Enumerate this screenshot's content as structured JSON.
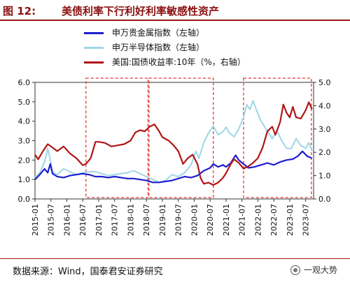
{
  "figure": {
    "label": "图 12:",
    "title": "美债利率下行利好利率敏感性资产"
  },
  "source_note": "数据来源：Wind，国泰君安证券研究",
  "watermark": "一观大势",
  "colors": {
    "title": "#8b1010",
    "s1": "#1f1fd0",
    "s2": "#9fd6e6",
    "s3": "#b01515",
    "highlight": "#e53935"
  },
  "chart_data": {
    "type": "line",
    "y_left": {
      "min": 0.0,
      "max": 6.0,
      "ticks": [
        "0.0",
        "1.0",
        "2.0",
        "3.0",
        "4.0",
        "5.0",
        "6.0"
      ]
    },
    "y_right": {
      "min": 0.0,
      "max": 5.0,
      "ticks": [
        "0.0",
        "1.0",
        "2.0",
        "3.0",
        "4.0",
        "5.0"
      ]
    },
    "x_range": [
      2015.0,
      2023.75
    ],
    "x_ticks": [
      "2015-01",
      "2015-07",
      "2016-01",
      "2016-07",
      "2017-01",
      "2017-07",
      "2018-01",
      "2018-07",
      "2019-01",
      "2019-07",
      "2020-01",
      "2020-07",
      "2021-01",
      "2021-07",
      "2022-01",
      "2022-07",
      "2023-01",
      "2023-07"
    ],
    "series": [
      {
        "name": "申万贵金属指数（左轴）",
        "axis": "left",
        "color": "#1f1fd0",
        "points": [
          [
            2015.0,
            1.0
          ],
          [
            2015.15,
            1.25
          ],
          [
            2015.3,
            1.55
          ],
          [
            2015.4,
            1.35
          ],
          [
            2015.48,
            1.8
          ],
          [
            2015.55,
            1.3
          ],
          [
            2015.7,
            1.15
          ],
          [
            2015.9,
            1.1
          ],
          [
            2016.1,
            1.2
          ],
          [
            2016.3,
            1.25
          ],
          [
            2016.5,
            1.3
          ],
          [
            2016.7,
            1.25
          ],
          [
            2016.9,
            1.15
          ],
          [
            2017.1,
            1.15
          ],
          [
            2017.3,
            1.1
          ],
          [
            2017.5,
            1.15
          ],
          [
            2017.7,
            1.1
          ],
          [
            2017.9,
            1.05
          ],
          [
            2018.1,
            1.05
          ],
          [
            2018.3,
            1.0
          ],
          [
            2018.5,
            0.95
          ],
          [
            2018.7,
            0.85
          ],
          [
            2018.9,
            0.85
          ],
          [
            2019.1,
            0.9
          ],
          [
            2019.3,
            0.95
          ],
          [
            2019.5,
            1.05
          ],
          [
            2019.7,
            1.15
          ],
          [
            2019.9,
            1.1
          ],
          [
            2020.1,
            1.2
          ],
          [
            2020.3,
            1.45
          ],
          [
            2020.5,
            1.6
          ],
          [
            2020.6,
            1.8
          ],
          [
            2020.75,
            1.65
          ],
          [
            2020.9,
            1.75
          ],
          [
            2021.0,
            1.65
          ],
          [
            2021.15,
            1.85
          ],
          [
            2021.3,
            2.25
          ],
          [
            2021.4,
            2.0
          ],
          [
            2021.55,
            1.8
          ],
          [
            2021.7,
            1.6
          ],
          [
            2021.9,
            1.65
          ],
          [
            2022.1,
            1.75
          ],
          [
            2022.3,
            1.85
          ],
          [
            2022.5,
            1.75
          ],
          [
            2022.7,
            1.9
          ],
          [
            2022.9,
            2.0
          ],
          [
            2023.1,
            2.05
          ],
          [
            2023.25,
            2.2
          ],
          [
            2023.4,
            2.45
          ],
          [
            2023.55,
            2.2
          ],
          [
            2023.7,
            2.1
          ]
        ]
      },
      {
        "name": "申万半导体指数（左轴）",
        "axis": "left",
        "color": "#9fd6e6",
        "points": [
          [
            2015.0,
            1.1
          ],
          [
            2015.15,
            1.35
          ],
          [
            2015.3,
            1.9
          ],
          [
            2015.4,
            2.6
          ],
          [
            2015.47,
            2.1
          ],
          [
            2015.55,
            1.4
          ],
          [
            2015.7,
            1.25
          ],
          [
            2015.9,
            1.55
          ],
          [
            2016.1,
            1.4
          ],
          [
            2016.3,
            1.25
          ],
          [
            2016.5,
            1.35
          ],
          [
            2016.7,
            1.4
          ],
          [
            2016.9,
            1.4
          ],
          [
            2017.1,
            1.3
          ],
          [
            2017.3,
            1.2
          ],
          [
            2017.5,
            1.25
          ],
          [
            2017.7,
            1.3
          ],
          [
            2017.9,
            1.35
          ],
          [
            2018.1,
            1.45
          ],
          [
            2018.3,
            1.3
          ],
          [
            2018.5,
            1.15
          ],
          [
            2018.7,
            1.0
          ],
          [
            2018.9,
            0.85
          ],
          [
            2019.1,
            0.95
          ],
          [
            2019.3,
            1.25
          ],
          [
            2019.5,
            1.15
          ],
          [
            2019.7,
            1.35
          ],
          [
            2019.9,
            1.75
          ],
          [
            2020.05,
            2.45
          ],
          [
            2020.15,
            2.1
          ],
          [
            2020.3,
            2.9
          ],
          [
            2020.45,
            3.4
          ],
          [
            2020.6,
            3.75
          ],
          [
            2020.75,
            3.3
          ],
          [
            2020.9,
            3.45
          ],
          [
            2021.0,
            3.7
          ],
          [
            2021.1,
            3.4
          ],
          [
            2021.25,
            3.2
          ],
          [
            2021.4,
            3.6
          ],
          [
            2021.55,
            4.2
          ],
          [
            2021.65,
            4.85
          ],
          [
            2021.75,
            4.6
          ],
          [
            2021.85,
            5.05
          ],
          [
            2021.95,
            4.6
          ],
          [
            2022.1,
            4.0
          ],
          [
            2022.3,
            3.5
          ],
          [
            2022.45,
            3.1
          ],
          [
            2022.6,
            3.5
          ],
          [
            2022.75,
            3.0
          ],
          [
            2022.9,
            2.6
          ],
          [
            2023.05,
            2.6
          ],
          [
            2023.2,
            3.1
          ],
          [
            2023.35,
            2.75
          ],
          [
            2023.5,
            2.6
          ],
          [
            2023.6,
            2.9
          ],
          [
            2023.7,
            2.45
          ]
        ]
      },
      {
        "name": "美国:国债收益率:10年（%，右轴）",
        "axis": "right",
        "color": "#b01515",
        "points": [
          [
            2015.0,
            1.9
          ],
          [
            2015.1,
            1.7
          ],
          [
            2015.25,
            2.05
          ],
          [
            2015.4,
            2.35
          ],
          [
            2015.5,
            2.25
          ],
          [
            2015.7,
            2.05
          ],
          [
            2015.9,
            2.25
          ],
          [
            2016.1,
            1.95
          ],
          [
            2016.3,
            1.75
          ],
          [
            2016.5,
            1.45
          ],
          [
            2016.6,
            1.5
          ],
          [
            2016.75,
            1.75
          ],
          [
            2016.9,
            2.45
          ],
          [
            2017.0,
            2.45
          ],
          [
            2017.2,
            2.4
          ],
          [
            2017.4,
            2.25
          ],
          [
            2017.6,
            2.3
          ],
          [
            2017.8,
            2.35
          ],
          [
            2018.0,
            2.5
          ],
          [
            2018.15,
            2.85
          ],
          [
            2018.3,
            2.95
          ],
          [
            2018.45,
            2.9
          ],
          [
            2018.6,
            3.1
          ],
          [
            2018.75,
            3.2
          ],
          [
            2018.9,
            2.9
          ],
          [
            2019.0,
            2.65
          ],
          [
            2019.2,
            2.5
          ],
          [
            2019.35,
            2.3
          ],
          [
            2019.5,
            2.05
          ],
          [
            2019.65,
            1.5
          ],
          [
            2019.8,
            1.75
          ],
          [
            2019.95,
            1.9
          ],
          [
            2020.1,
            1.5
          ],
          [
            2020.2,
            0.9
          ],
          [
            2020.3,
            0.65
          ],
          [
            2020.45,
            0.7
          ],
          [
            2020.6,
            0.6
          ],
          [
            2020.75,
            0.7
          ],
          [
            2020.9,
            0.9
          ],
          [
            2021.0,
            1.1
          ],
          [
            2021.15,
            1.5
          ],
          [
            2021.25,
            1.7
          ],
          [
            2021.4,
            1.55
          ],
          [
            2021.55,
            1.3
          ],
          [
            2021.7,
            1.4
          ],
          [
            2021.85,
            1.55
          ],
          [
            2022.0,
            1.75
          ],
          [
            2022.15,
            2.2
          ],
          [
            2022.3,
            2.9
          ],
          [
            2022.45,
            3.1
          ],
          [
            2022.55,
            2.75
          ],
          [
            2022.7,
            3.3
          ],
          [
            2022.8,
            4.05
          ],
          [
            2022.9,
            3.7
          ],
          [
            2023.0,
            3.5
          ],
          [
            2023.1,
            3.95
          ],
          [
            2023.2,
            3.5
          ],
          [
            2023.35,
            3.45
          ],
          [
            2023.5,
            3.8
          ],
          [
            2023.6,
            4.15
          ],
          [
            2023.7,
            3.85
          ]
        ]
      }
    ],
    "highlight_regions": [
      [
        2016.6,
        2018.55
      ],
      [
        2018.58,
        2020.6
      ],
      [
        2021.55,
        2023.68
      ]
    ]
  }
}
